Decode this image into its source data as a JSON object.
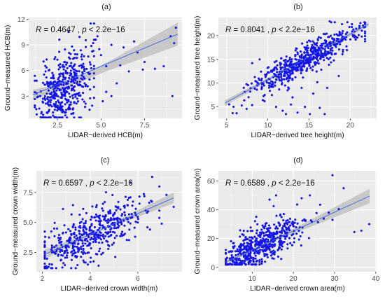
{
  "colors": {
    "panel_bg": "#ebebeb",
    "grid_major": "#ffffff",
    "grid_minor": "#f5f5f5",
    "point": "#1414e6",
    "fit_line": "#3a66e8",
    "ci_band": "#c2c2c2"
  },
  "chart_data": [
    {
      "type": "scatter",
      "panel_label": "(a)",
      "annotation": {
        "r_symbol": "R",
        "r_text": " = 0.4647 , ",
        "p_symbol": "p",
        "p_text": " < 2.2e−16"
      },
      "xlabel": "LIDAR−derived HCB(m)",
      "ylabel": "Ground−measured HCB(m)",
      "xlim": [
        0.85,
        9.65
      ],
      "ylim": [
        0.4,
        12.2
      ],
      "xticks": [
        2.5,
        5.0,
        7.5
      ],
      "xtick_labels": [
        "2.5",
        "5.0",
        "7.5"
      ],
      "yticks": [
        3,
        6,
        9,
        12
      ],
      "ytick_labels": [
        "3",
        "6",
        "9",
        "12"
      ],
      "fit": {
        "x": [
          1.1,
          9.4
        ],
        "y": [
          3.15,
          10.25
        ]
      },
      "ci": {
        "x": [
          1.1,
          3.0,
          5.5,
          9.4
        ],
        "upper": [
          3.75,
          4.6,
          7.1,
          11.6
        ],
        "lower": [
          2.55,
          4.05,
          6.05,
          8.9
        ]
      },
      "cloud": {
        "n": 440,
        "x_center": 2.85,
        "x_sd": 0.75,
        "x_min": 1.2,
        "x_max": 4.6,
        "y_intercept": 0.5,
        "y_slope": 1.2,
        "y_sd": 2.0,
        "y_min": 0.5,
        "y_max": 11.5,
        "seed": 11
      },
      "extra_points": [
        [
          4.55,
          9.2
        ],
        [
          4.9,
          8.5
        ],
        [
          5.0,
          7.8
        ],
        [
          5.3,
          6.5
        ],
        [
          5.6,
          9.0
        ],
        [
          5.6,
          3.0
        ],
        [
          5.9,
          4.5
        ],
        [
          6.1,
          6.6
        ],
        [
          6.6,
          5.9
        ],
        [
          6.9,
          9.4
        ],
        [
          7.1,
          8.1
        ],
        [
          7.4,
          6.1
        ],
        [
          7.5,
          7.0
        ],
        [
          8.1,
          6.2
        ],
        [
          8.6,
          6.5
        ],
        [
          9.0,
          10.0
        ],
        [
          9.2,
          9.2
        ],
        [
          9.3,
          11.0
        ],
        [
          9.1,
          3.0
        ],
        [
          4.8,
          10.0
        ],
        [
          5.3,
          3.5
        ],
        [
          5.1,
          2.4
        ],
        [
          4.7,
          9.6
        ],
        [
          6.3,
          8.7
        ],
        [
          4.6,
          2.8
        ]
      ]
    },
    {
      "type": "scatter",
      "panel_label": "(b)",
      "annotation": {
        "r_symbol": "R",
        "r_text": " = 0.8041 , ",
        "p_symbol": "p",
        "p_text": " < 2.2e−16"
      },
      "xlabel": "LIDAR−derived tree height(m)",
      "ylabel": "Ground−measured tree height(m)",
      "xlim": [
        4.0,
        23.2
      ],
      "ylim": [
        2.6,
        23.8
      ],
      "xticks": [
        5,
        10,
        15,
        20
      ],
      "xtick_labels": [
        "5",
        "10",
        "15",
        "20"
      ],
      "yticks": [
        5,
        10,
        15,
        20
      ],
      "ytick_labels": [
        "5",
        "10",
        "15",
        "20"
      ],
      "fit": {
        "x": [
          4.8,
          22.2
        ],
        "y": [
          5.8,
          22.4
        ]
      },
      "ci": {
        "x": [
          4.8,
          13.5,
          22.2
        ],
        "upper": [
          6.4,
          14.3,
          22.9
        ],
        "lower": [
          5.2,
          13.9,
          21.9
        ]
      },
      "cloud": {
        "n": 560,
        "x_center": 14.2,
        "x_sd": 3.1,
        "x_min": 5.2,
        "x_max": 21.8,
        "y_intercept": 1.2,
        "y_slope": 0.94,
        "y_sd": 1.5,
        "y_min": 3.0,
        "y_max": 22.8,
        "seed": 23
      },
      "extra_points": [
        [
          11.0,
          5.0
        ],
        [
          12.2,
          3.5
        ],
        [
          12.8,
          5.5
        ],
        [
          13.6,
          3.8
        ],
        [
          14.5,
          5.0
        ],
        [
          15.1,
          3.5
        ],
        [
          16.3,
          4.8
        ],
        [
          16.9,
          3.5
        ],
        [
          10.5,
          7.5
        ],
        [
          13.0,
          7.0
        ],
        [
          15.5,
          7.8
        ],
        [
          17.2,
          9.0
        ],
        [
          12.4,
          8.5
        ],
        [
          14.1,
          9.0
        ],
        [
          9.0,
          15.0
        ],
        [
          8.1,
          14.2
        ],
        [
          17.5,
          23.0
        ],
        [
          20.2,
          21.8
        ],
        [
          21.4,
          19.8
        ],
        [
          19.0,
          22.4
        ],
        [
          11.8,
          4.2
        ],
        [
          16.0,
          10.2
        ],
        [
          18.6,
          11.5
        ],
        [
          9.6,
          6.2
        ]
      ]
    },
    {
      "type": "scatter",
      "panel_label": "(c)",
      "annotation": {
        "r_symbol": "R",
        "r_text": " = 0.6597 , ",
        "p_symbol": "p",
        "p_text": " < 2.2e−16"
      },
      "xlabel": "LIDAR−derived crown width(m)",
      "ylabel": "Ground−measured crown width(m)",
      "xlim": [
        1.75,
        7.85
      ],
      "ylim": [
        0.9,
        9.3
      ],
      "xticks": [
        2,
        4,
        6
      ],
      "xtick_labels": [
        "2",
        "4",
        "6"
      ],
      "yticks": [
        2.5,
        5.0,
        7.5
      ],
      "ytick_labels": [
        "2.5",
        "5.0",
        "7.5"
      ],
      "fit": {
        "x": [
          2.1,
          7.5
        ],
        "y": [
          2.35,
          7.05
        ]
      },
      "ci": {
        "x": [
          2.1,
          4.4,
          7.5
        ],
        "upper": [
          2.75,
          4.45,
          7.5
        ],
        "lower": [
          1.95,
          4.25,
          6.6
        ]
      },
      "cloud": {
        "n": 470,
        "x_center": 4.1,
        "x_sd": 1.05,
        "x_min": 2.1,
        "x_max": 6.9,
        "y_intercept": 0.5,
        "y_slope": 0.88,
        "y_sd": 1.0,
        "y_min": 1.2,
        "y_max": 8.9,
        "seed": 37
      },
      "extra_points": [
        [
          7.2,
          7.3
        ],
        [
          7.5,
          6.3
        ],
        [
          6.6,
          8.8
        ],
        [
          6.9,
          8.0
        ],
        [
          7.0,
          4.9
        ],
        [
          6.4,
          4.6
        ],
        [
          2.2,
          1.2
        ],
        [
          2.4,
          1.5
        ]
      ]
    },
    {
      "type": "scatter",
      "panel_label": "(d)",
      "annotation": {
        "r_symbol": "R",
        "r_text": " = 0.6589 , ",
        "p_symbol": "p",
        "p_text": " < 2.2e−16"
      },
      "xlabel": "LIDAR−derived crown area(m)",
      "ylabel": "Ground−measured crown area(m)",
      "xlim": [
        1.8,
        40.2
      ],
      "ylim": [
        -3.0,
        67.0
      ],
      "xticks": [
        10,
        20,
        30,
        40
      ],
      "xtick_labels": [
        "10",
        "20",
        "30",
        "40"
      ],
      "yticks": [
        0,
        20,
        40,
        60
      ],
      "ytick_labels": [
        "0",
        "20",
        "40",
        "60"
      ],
      "fit": {
        "x": [
          3.5,
          38.5
        ],
        "y": [
          3.5,
          49.5
        ]
      },
      "ci": {
        "x": [
          3.5,
          14.0,
          38.5
        ],
        "upper": [
          5.5,
          17.8,
          54.5
        ],
        "lower": [
          1.7,
          16.5,
          44.5
        ]
      },
      "cloud": {
        "n": 560,
        "x_center": 12.0,
        "x_sd": 4.8,
        "x_min": 3.6,
        "x_max": 28.0,
        "y_intercept": -0.8,
        "y_slope": 1.3,
        "y_sd": 6.5,
        "y_min": 2.0,
        "y_max": 55.0,
        "seed": 51
      },
      "extra_points": [
        [
          29.5,
          64.0
        ],
        [
          32.2,
          55.0
        ],
        [
          38.4,
          30.0
        ],
        [
          36.5,
          25.5
        ],
        [
          34.8,
          24.5
        ],
        [
          31.0,
          40.5
        ],
        [
          28.6,
          38.0
        ],
        [
          26.5,
          43.5
        ],
        [
          24.0,
          50.0
        ],
        [
          15.8,
          50.0
        ],
        [
          14.2,
          47.0
        ],
        [
          15.2,
          42.5
        ],
        [
          11.8,
          5.0
        ],
        [
          29.5,
          33.0
        ],
        [
          22.0,
          48.0
        ]
      ]
    }
  ]
}
